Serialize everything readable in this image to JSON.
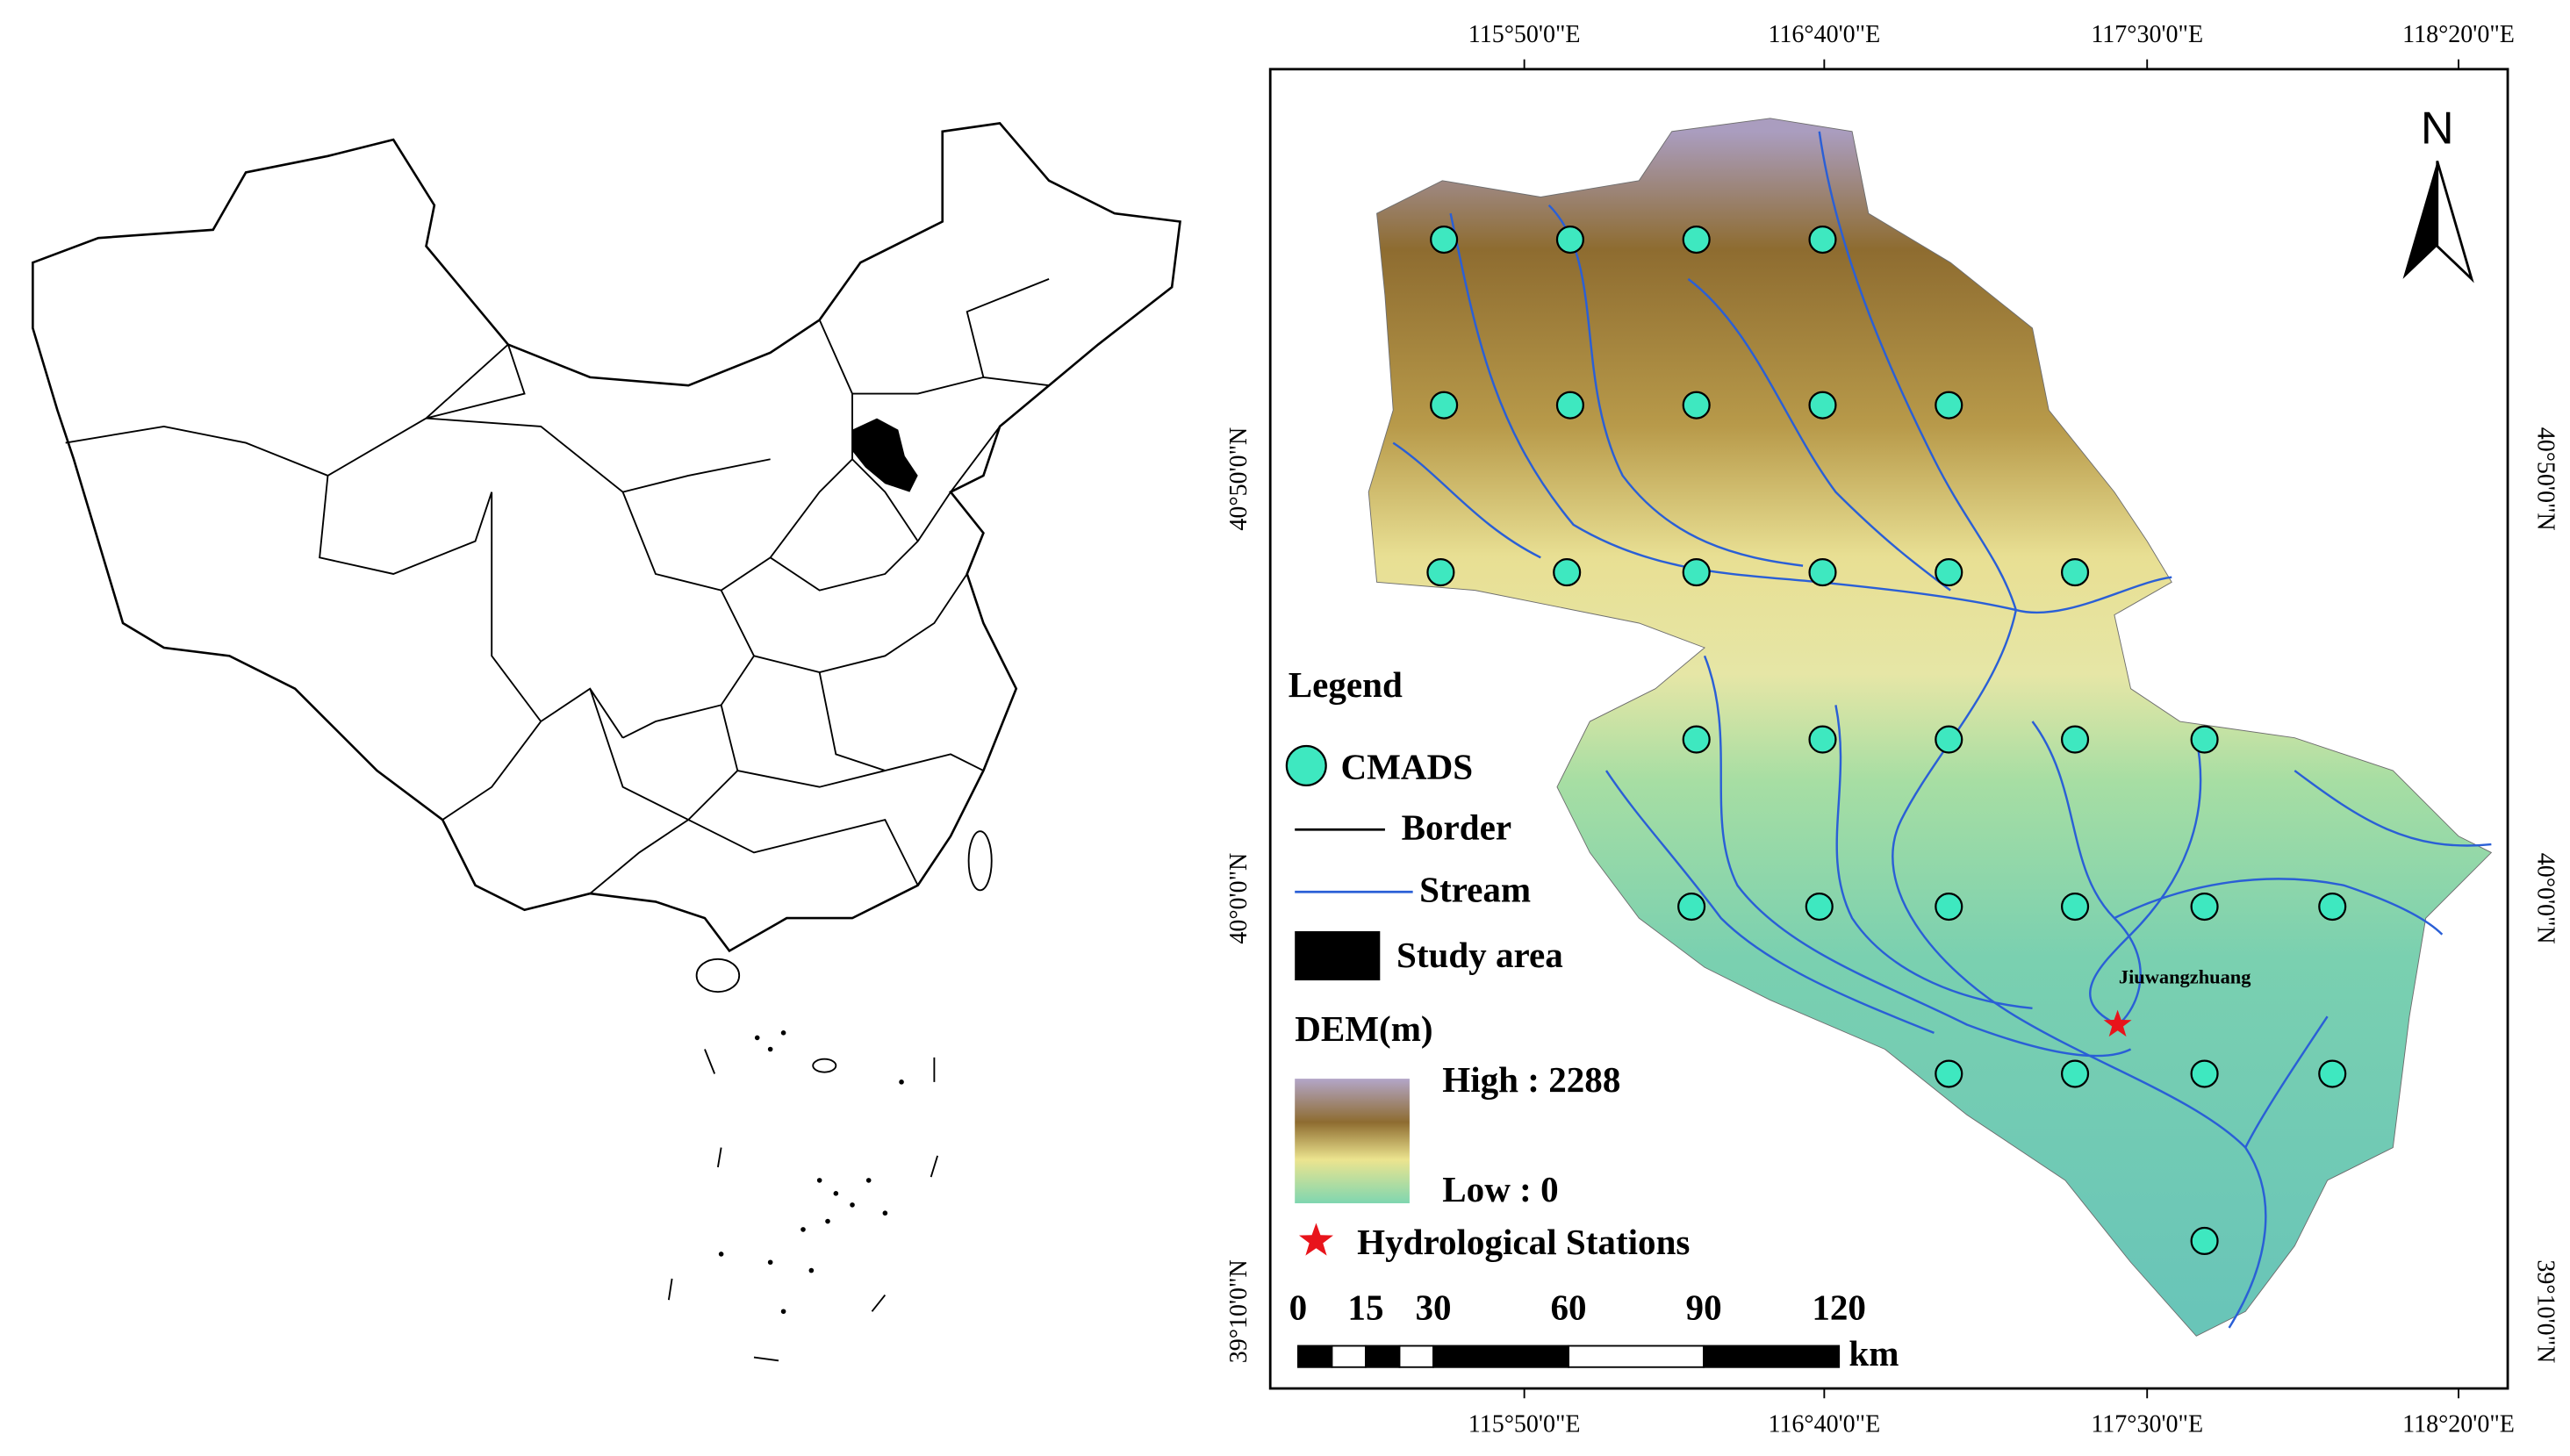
{
  "map": {
    "legend": {
      "title": "Legend",
      "items": [
        "CMADS",
        "Border",
        "Stream",
        "Study area",
        "Hydrological Stations"
      ],
      "dem_title": "DEM(m)",
      "dem_high": "High : 2288",
      "dem_low": "Low : 0"
    },
    "station_label": "Jiuwangzhuang",
    "north": "N",
    "longitude_labels": [
      "115°50'0\"E",
      "116°40'0\"E",
      "117°30'0\"E",
      "118°20'0\"E"
    ],
    "latitude_labels": [
      "40°50'0\"N",
      "40°0'0\"N",
      "39°10'0\"N"
    ],
    "scale_bar": {
      "ticks": [
        0,
        15,
        30,
        60,
        90,
        120
      ],
      "unit": "km"
    }
  }
}
